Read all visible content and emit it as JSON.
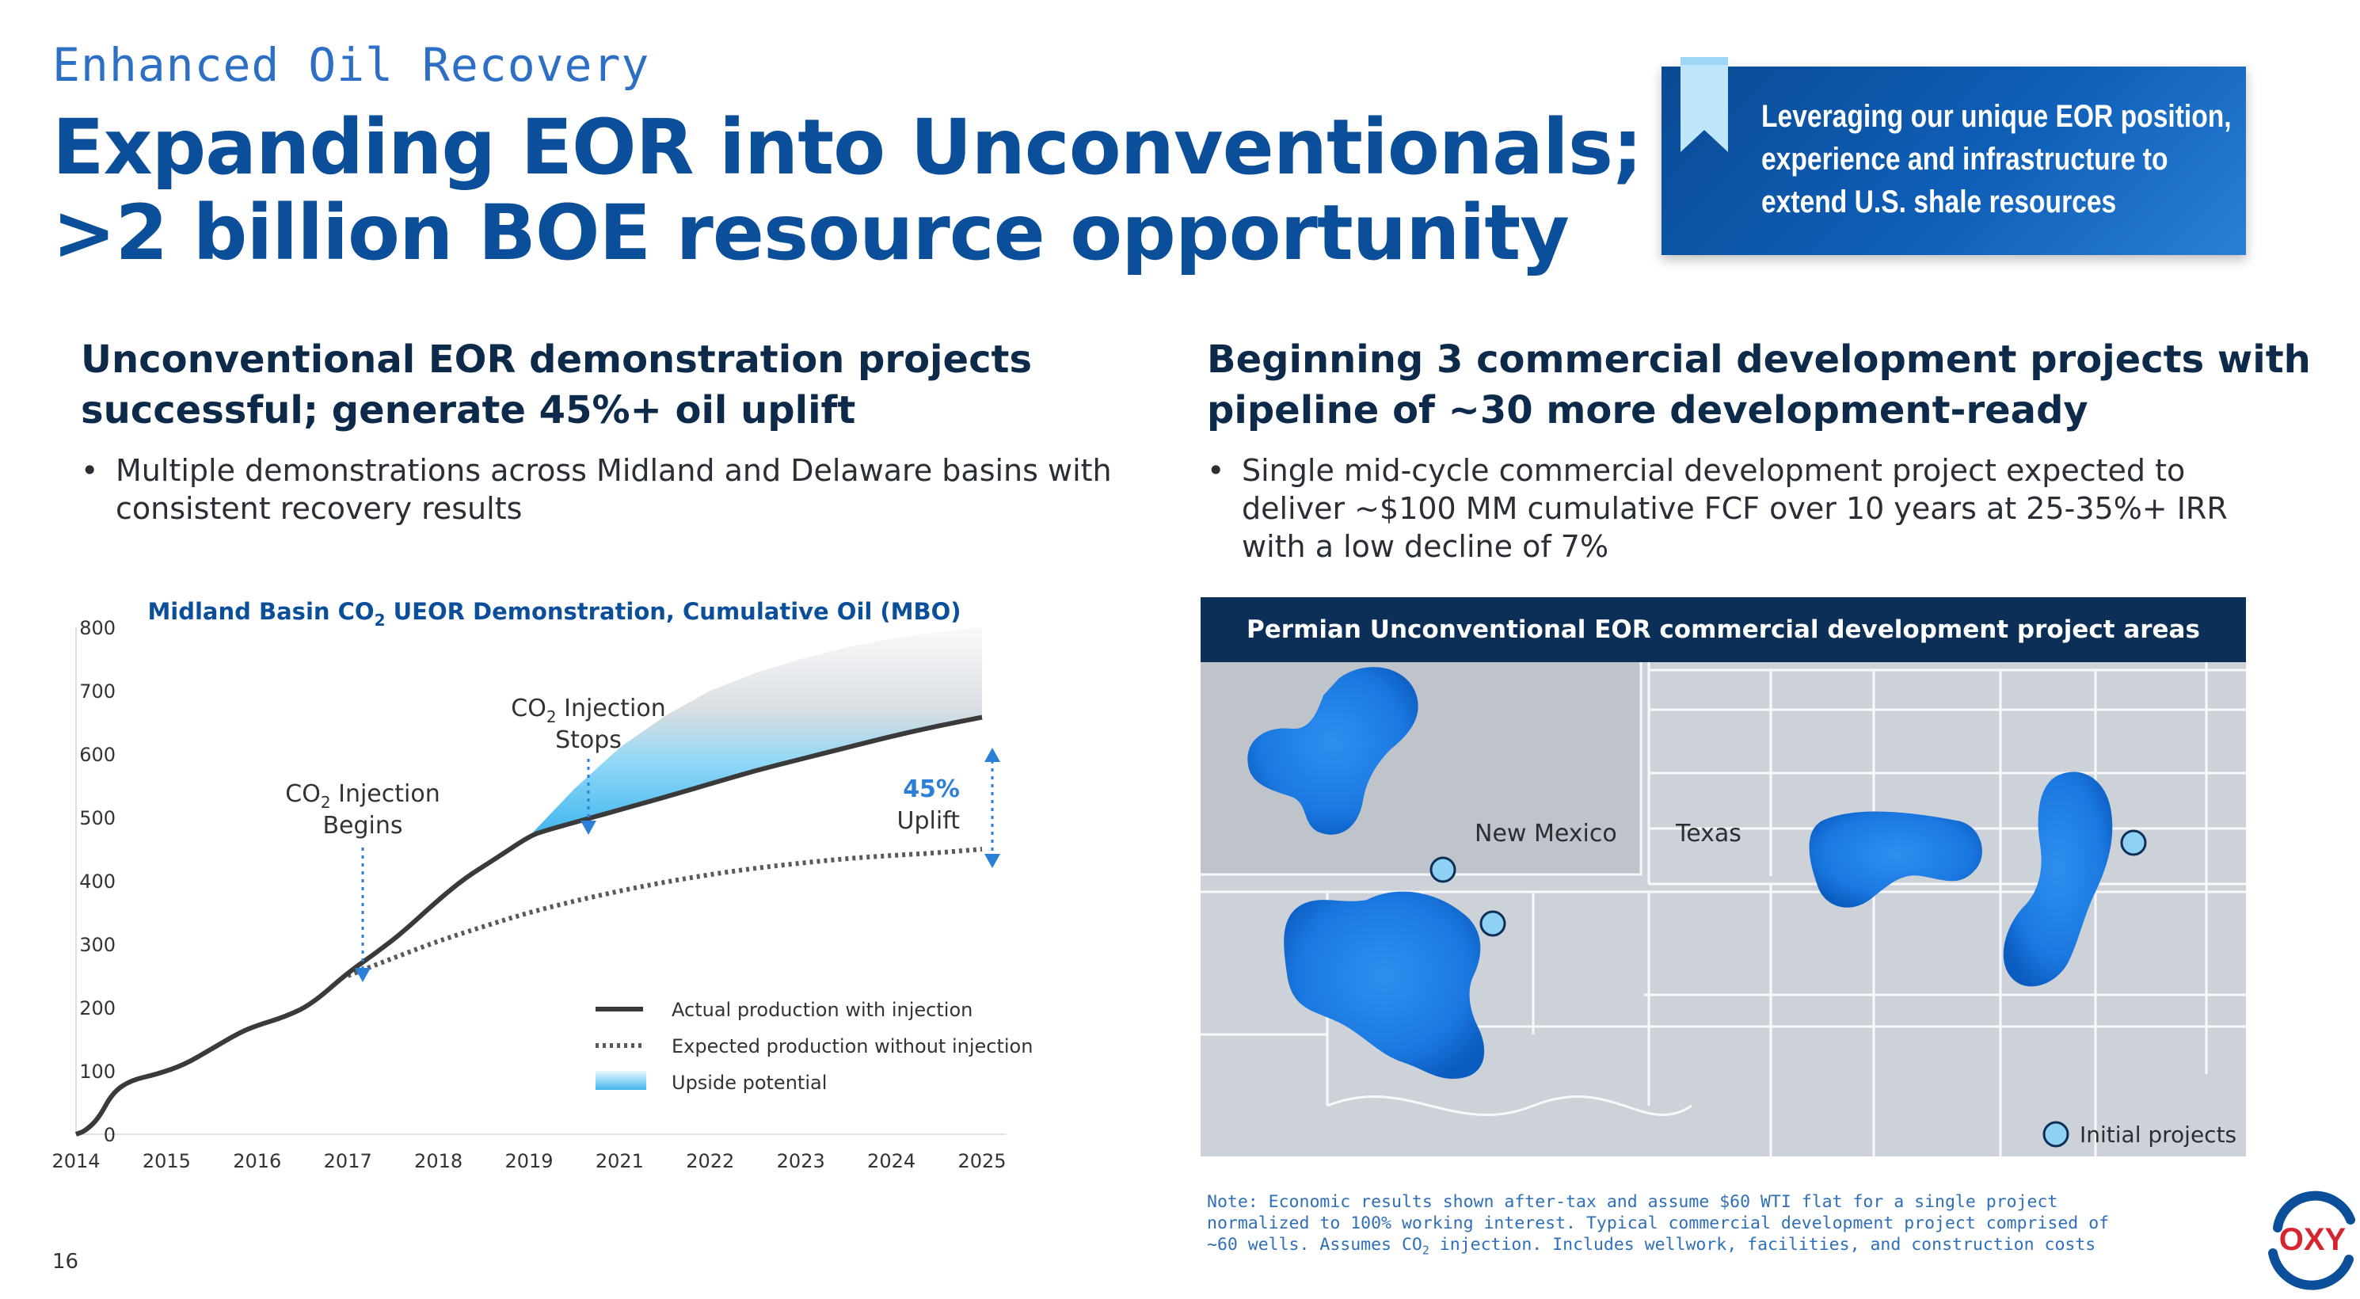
{
  "header": {
    "kicker": "Enhanced Oil Recovery",
    "title_line1": "Expanding EOR into Unconventionals;",
    "title_line2": ">2 billion BOE resource opportunity"
  },
  "callout": {
    "line1": "Leveraging our unique EOR position,",
    "line2": "experience and infrastructure to",
    "line3": "extend U.S. shale resources",
    "icon": "bookmark-ribbon-icon"
  },
  "left": {
    "heading_line1": "Unconventional EOR demonstration projects",
    "heading_line2": "successful; generate 45%+ oil uplift",
    "bullet_line1": "Multiple demonstrations across Midland and Delaware basins with",
    "bullet_line2": "consistent recovery results"
  },
  "right": {
    "heading_line1": "Beginning 3 commercial development projects with",
    "heading_line2": "pipeline of ~30 more development-ready",
    "bullet_line1": "Single mid-cycle commercial development project expected to",
    "bullet_line2": "deliver ~$100 MM cumulative FCF over 10 years at 25-35%+ IRR",
    "bullet_line3": "with a low decline of 7%"
  },
  "bullet_symbol": "•",
  "chart_data": {
    "type": "line",
    "title": "Midland Basin CO",
    "title_sub": "2",
    "title_rest": " UEOR Demonstration, Cumulative Oil (MBO)",
    "xlabel": "",
    "ylabel": "",
    "ylim": [
      0,
      800
    ],
    "yticks": [
      "0",
      "100",
      "200",
      "300",
      "400",
      "500",
      "600",
      "700",
      "800"
    ],
    "xticks": [
      "2014",
      "2015",
      "2016",
      "2017",
      "2018",
      "2019",
      "2021",
      "2022",
      "2023",
      "2024",
      "2025"
    ],
    "series": [
      {
        "name": "Actual production with injection",
        "style": "solid",
        "color": "#3a3a3a",
        "x": [
          0,
          0.1,
          0.25,
          0.4,
          0.6,
          0.9,
          1.2,
          1.5,
          1.8,
          2.0,
          2.3,
          2.6,
          3.0,
          3.3,
          3.6,
          4.0,
          4.3,
          4.6,
          5.0,
          5.15,
          5.5,
          6.0,
          6.5,
          7.0,
          7.5,
          8.0,
          8.5,
          9.0,
          9.5,
          10.0
        ],
        "y": [
          0,
          5,
          25,
          65,
          85,
          95,
          110,
          135,
          160,
          172,
          185,
          205,
          255,
          285,
          318,
          370,
          405,
          432,
          470,
          478,
          492,
          512,
          532,
          553,
          574,
          592,
          610,
          628,
          644,
          658
        ]
      },
      {
        "name": "Expected production without injection",
        "style": "dotted",
        "color": "#555555",
        "x": [
          3.0,
          3.5,
          4.0,
          4.5,
          5.0,
          5.5,
          6.0,
          6.5,
          7.0,
          7.5,
          8.0,
          8.5,
          9.0,
          9.5,
          10.0
        ],
        "y": [
          250,
          278,
          305,
          328,
          350,
          368,
          384,
          398,
          410,
          420,
          428,
          435,
          440,
          444,
          450
        ]
      }
    ],
    "upside_band": {
      "name": "Upside potential",
      "x": [
        5.0,
        5.5,
        6.0,
        6.5,
        7.0,
        7.5,
        8.0,
        8.5,
        9.0,
        9.5,
        10.0
      ],
      "upper": [
        470,
        545,
        610,
        660,
        700,
        728,
        750,
        768,
        782,
        792,
        800
      ]
    },
    "annotations": {
      "begins_pre": "CO",
      "begins_sub": "2",
      "begins_post": " Injection",
      "begins_line2": "Begins",
      "stops_pre": "CO",
      "stops_sub": "2",
      "stops_post": " Injection",
      "stops_line2": "Stops",
      "uplift_value": "45%",
      "uplift_label": "Uplift"
    },
    "legend": {
      "placement": "bottom-right",
      "actual": "Actual production with injection",
      "expected": "Expected production without injection",
      "upside": "Upside potential"
    }
  },
  "map": {
    "header": "Permian Unconventional EOR commercial development project areas",
    "label_nm": "New Mexico",
    "label_tx": "Texas",
    "legend_label": "Initial projects"
  },
  "note": {
    "line1": "Note: Economic results shown after-tax and assume $60 WTI flat for a single project",
    "line2": "normalized to 100% working interest. Typical commercial development project comprised of",
    "line3_pre": "~60 wells. Assumes CO",
    "line3_sub": "2",
    "line3_post": " injection. Includes wellwork, facilities, and construction costs"
  },
  "page_number": "16",
  "logo": {
    "text": "OXY",
    "icon": "oxy-logo-icon"
  },
  "colors": {
    "brand_blue": "#0b4e9a",
    "accent_blue": "#2c7fd6",
    "navy": "#0b2f57",
    "upside_cyan": "#5cc6f2",
    "logo_red": "#d7252f"
  }
}
